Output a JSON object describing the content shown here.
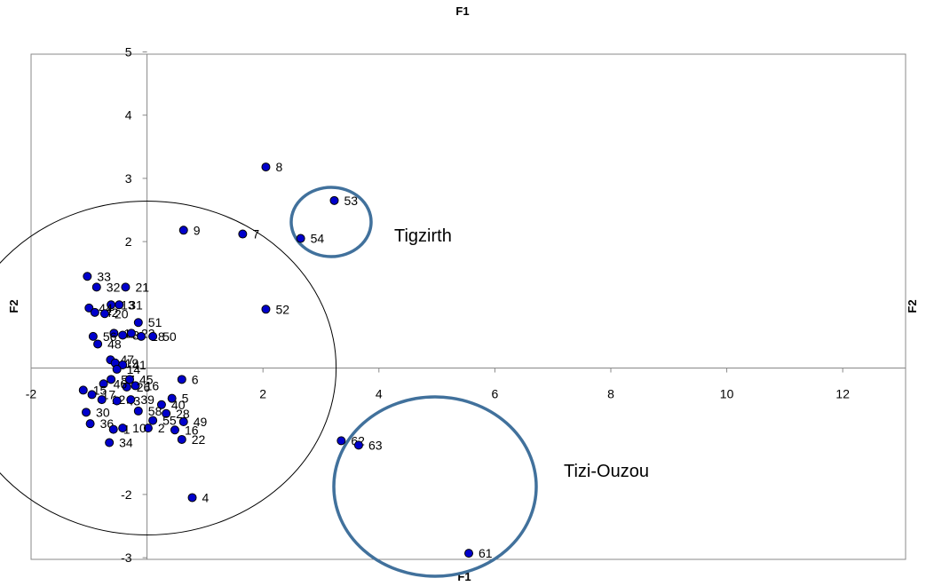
{
  "chart_data": {
    "type": "scatter",
    "title": "F1",
    "xlabel": "F1",
    "ylabel": "F2",
    "ylabel_right": "F2",
    "xlim": [
      -2,
      13
    ],
    "ylim": [
      -3,
      5
    ],
    "xticks": [
      -2,
      2,
      4,
      6,
      8,
      10,
      12
    ],
    "yticks": [
      5,
      4,
      3,
      2,
      -2,
      -3
    ],
    "grid": false,
    "series": [
      {
        "color": "#0000cc",
        "points": [
          {
            "label": "8",
            "x": 2.05,
            "y": 3.18
          },
          {
            "label": "53",
            "x": 3.23,
            "y": 2.65
          },
          {
            "label": "9",
            "x": 0.63,
            "y": 2.18
          },
          {
            "label": "7",
            "x": 1.65,
            "y": 2.12
          },
          {
            "label": "54",
            "x": 2.65,
            "y": 2.05
          },
          {
            "label": "33",
            "x": -1.03,
            "y": 1.45
          },
          {
            "label": "32",
            "x": -0.87,
            "y": 1.28
          },
          {
            "label": "21",
            "x": -0.37,
            "y": 1.28
          },
          {
            "label": "52",
            "x": 2.05,
            "y": 0.93
          },
          {
            "label": "13",
            "x": -0.62,
            "y": 1.0
          },
          {
            "label": "31",
            "x": -0.48,
            "y": 1.0
          },
          {
            "label": "44",
            "x": -1.0,
            "y": 0.95
          },
          {
            "label": "42",
            "x": -0.9,
            "y": 0.88
          },
          {
            "label": "20",
            "x": -0.73,
            "y": 0.86
          },
          {
            "label": "51",
            "x": -0.15,
            "y": 0.72
          },
          {
            "label": "11",
            "x": -0.57,
            "y": 0.55
          },
          {
            "label": "3",
            "x": -0.42,
            "y": 0.52
          },
          {
            "label": "23",
            "x": -0.27,
            "y": 0.55
          },
          {
            "label": "18",
            "x": -0.1,
            "y": 0.5
          },
          {
            "label": "50",
            "x": 0.1,
            "y": 0.5
          },
          {
            "label": "56",
            "x": -0.93,
            "y": 0.5
          },
          {
            "label": "48",
            "x": -0.85,
            "y": 0.38
          },
          {
            "label": "47",
            "x": -0.63,
            "y": 0.13
          },
          {
            "label": "19",
            "x": -0.55,
            "y": 0.08
          },
          {
            "label": "41",
            "x": -0.42,
            "y": 0.05
          },
          {
            "label": "14",
            "x": -0.52,
            "y": -0.02
          },
          {
            "label": "6",
            "x": 0.6,
            "y": -0.18
          },
          {
            "label": "57",
            "x": -0.62,
            "y": -0.18
          },
          {
            "label": "45",
            "x": -0.3,
            "y": -0.18
          },
          {
            "label": "16",
            "x": -0.2,
            "y": -0.28
          },
          {
            "label": "26",
            "x": -0.35,
            "y": -0.3
          },
          {
            "label": "46",
            "x": -0.75,
            "y": -0.25
          },
          {
            "label": "15",
            "x": -1.1,
            "y": -0.35
          },
          {
            "label": "17",
            "x": -0.95,
            "y": -0.42
          },
          {
            "label": "12",
            "x": -0.78,
            "y": -0.5
          },
          {
            "label": "43",
            "x": -0.52,
            "y": -0.52
          },
          {
            "label": "39",
            "x": -0.28,
            "y": -0.5
          },
          {
            "label": "5",
            "x": 0.43,
            "y": -0.48
          },
          {
            "label": "40",
            "x": 0.25,
            "y": -0.58
          },
          {
            "label": "30",
            "x": -1.05,
            "y": -0.7
          },
          {
            "label": "58",
            "x": -0.15,
            "y": -0.68
          },
          {
            "label": "28",
            "x": 0.33,
            "y": -0.72
          },
          {
            "label": "55",
            "x": 0.1,
            "y": -0.83
          },
          {
            "label": "49",
            "x": 0.63,
            "y": -0.85
          },
          {
            "label": "36",
            "x": -0.98,
            "y": -0.88
          },
          {
            "label": "2",
            "x": 0.02,
            "y": -0.95
          },
          {
            "label": "1",
            "x": -0.58,
            "y": -0.97
          },
          {
            "label": "10",
            "x": -0.42,
            "y": -0.95
          },
          {
            "label": "16",
            "x": 0.48,
            "y": -0.98
          },
          {
            "label": "34",
            "x": -0.65,
            "y": -1.18
          },
          {
            "label": "22",
            "x": 0.6,
            "y": -1.13
          },
          {
            "label": "62",
            "x": 3.35,
            "y": -1.15
          },
          {
            "label": "63",
            "x": 3.65,
            "y": -1.22
          },
          {
            "label": "4",
            "x": 0.78,
            "y": -2.05
          },
          {
            "label": "61",
            "x": 5.55,
            "y": -2.93
          }
        ]
      }
    ],
    "annotations": [
      {
        "text": "Tigzirth",
        "near": "points 53, 54"
      },
      {
        "text": "Tizi-Ouzou",
        "near": "points 62, 63, 61"
      }
    ]
  }
}
